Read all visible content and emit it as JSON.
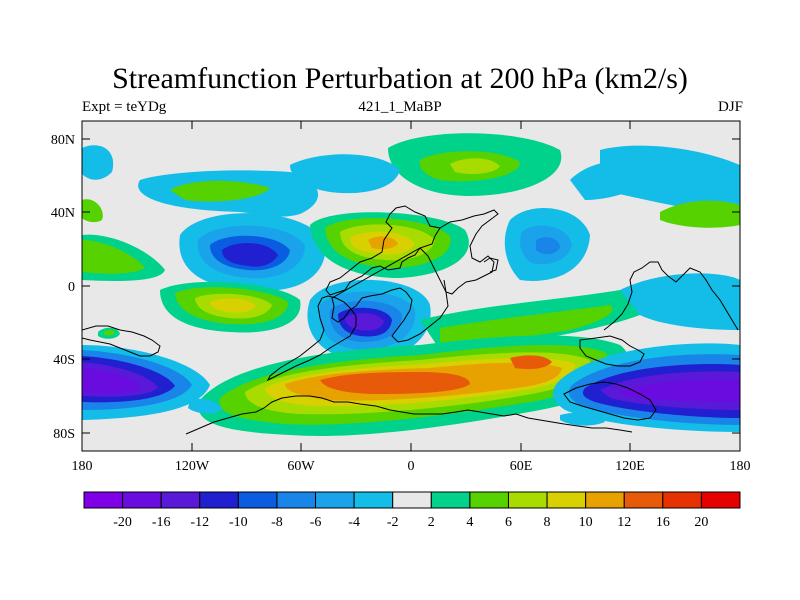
{
  "title": "Streamfunction Perturbation at 200 hPa (km2/s)",
  "subtitle_left": "Expt = teYDg",
  "subtitle_center": "421_1_MaBP",
  "subtitle_right": "DJF",
  "lat_labels": [
    "80N",
    "40N",
    "0",
    "40S",
    "80S"
  ],
  "lon_labels": [
    "180",
    "120W",
    "60W",
    "0",
    "60E",
    "120E",
    "180"
  ],
  "colorbar": {
    "colors": [
      "#7f00e6",
      "#6a0be0",
      "#5a18d8",
      "#2020d0",
      "#0a5ce0",
      "#1a85e8",
      "#1aa3ea",
      "#14bce8",
      "#e8e8e8",
      "#00d28c",
      "#55d200",
      "#a8dc00",
      "#d8d000",
      "#e8a200",
      "#e65a0a",
      "#e63200",
      "#e60000"
    ],
    "labels": [
      "-20",
      "-16",
      "-12",
      "-10",
      "-8",
      "-6",
      "-4",
      "-2",
      "2",
      "4",
      "6",
      "8",
      "10",
      "12",
      "16",
      "20"
    ]
  }
}
